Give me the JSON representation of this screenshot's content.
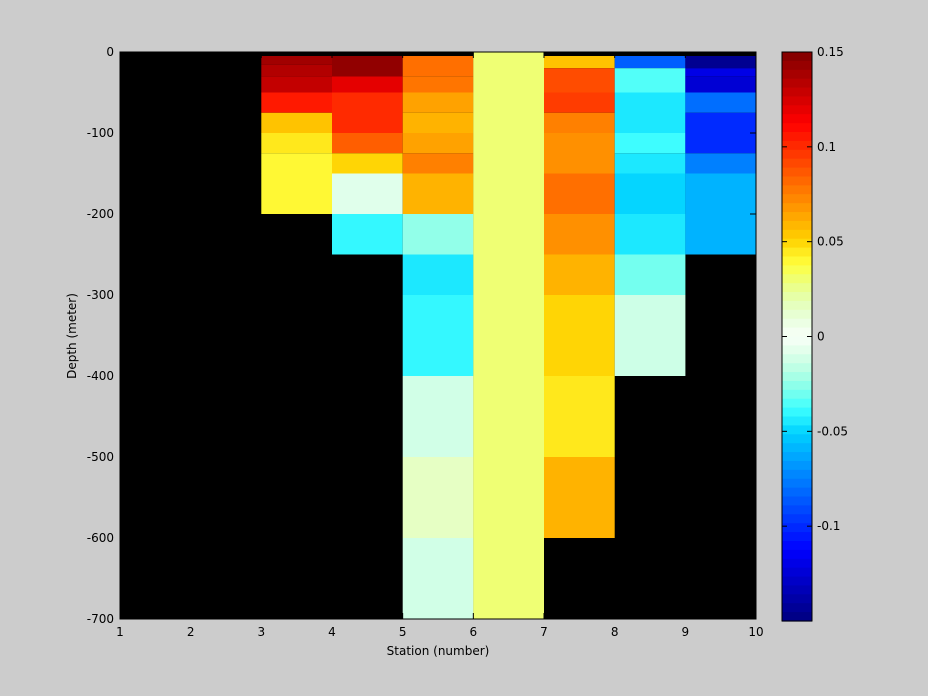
{
  "chart_data": {
    "type": "heatmap",
    "xlabel": "Station (number)",
    "ylabel": "Depth (meter)",
    "xlim": [
      1,
      10
    ],
    "ylim": [
      -700,
      0
    ],
    "x_ticks": [
      1,
      2,
      3,
      4,
      5,
      6,
      7,
      8,
      9,
      10
    ],
    "y_ticks": [
      0,
      -100,
      -200,
      -300,
      -400,
      -500,
      -600,
      -700
    ],
    "colorbar": {
      "colormap": "jet",
      "clim": [
        -0.15,
        0.15
      ],
      "ticks": [
        0.15,
        0.1,
        0.05,
        0,
        -0.05,
        -0.1
      ]
    },
    "background_color": "#000000",
    "columns": [
      {
        "x_start": 3,
        "x_end": 4,
        "cells": [
          {
            "top": -5,
            "bottom": -15,
            "value": 0.14
          },
          {
            "top": -15,
            "bottom": -30,
            "value": 0.135
          },
          {
            "top": -30,
            "bottom": -50,
            "value": 0.13
          },
          {
            "top": -50,
            "bottom": -75,
            "value": 0.105
          },
          {
            "top": -75,
            "bottom": -100,
            "value": 0.055
          },
          {
            "top": -100,
            "bottom": -125,
            "value": 0.045
          },
          {
            "top": -125,
            "bottom": -150,
            "value": 0.04
          },
          {
            "top": -150,
            "bottom": -200,
            "value": 0.04
          }
        ]
      },
      {
        "x_start": 4,
        "x_end": 5,
        "cells": [
          {
            "top": -5,
            "bottom": -30,
            "value": 0.145
          },
          {
            "top": -30,
            "bottom": -50,
            "value": 0.12
          },
          {
            "top": -50,
            "bottom": -100,
            "value": 0.1
          },
          {
            "top": -100,
            "bottom": -125,
            "value": 0.085
          },
          {
            "top": -125,
            "bottom": -150,
            "value": 0.05
          },
          {
            "top": -150,
            "bottom": -200,
            "value": -0.008
          },
          {
            "top": -200,
            "bottom": -250,
            "value": -0.04
          }
        ]
      },
      {
        "x_start": 5,
        "x_end": 6,
        "cells": [
          {
            "top": -5,
            "bottom": -30,
            "value": 0.08
          },
          {
            "top": -30,
            "bottom": -50,
            "value": 0.078
          },
          {
            "top": -50,
            "bottom": -75,
            "value": 0.065
          },
          {
            "top": -75,
            "bottom": -100,
            "value": 0.06
          },
          {
            "top": -100,
            "bottom": -125,
            "value": 0.065
          },
          {
            "top": -125,
            "bottom": -150,
            "value": 0.075
          },
          {
            "top": -150,
            "bottom": -200,
            "value": 0.06
          },
          {
            "top": -200,
            "bottom": -250,
            "value": -0.025
          },
          {
            "top": -250,
            "bottom": -300,
            "value": -0.045
          },
          {
            "top": -300,
            "bottom": -400,
            "value": -0.04
          },
          {
            "top": -400,
            "bottom": -500,
            "value": -0.012
          },
          {
            "top": -500,
            "bottom": -600,
            "value": 0.015
          },
          {
            "top": -600,
            "bottom": -700,
            "value": -0.012
          }
        ]
      },
      {
        "x_start": 6,
        "x_end": 7,
        "cells": [
          {
            "top": 0,
            "bottom": -700,
            "value": 0.03
          }
        ]
      },
      {
        "x_start": 7,
        "x_end": 8,
        "cells": [
          {
            "top": -5,
            "bottom": -20,
            "value": 0.055
          },
          {
            "top": -20,
            "bottom": -50,
            "value": 0.09
          },
          {
            "top": -50,
            "bottom": -75,
            "value": 0.095
          },
          {
            "top": -75,
            "bottom": -100,
            "value": 0.075
          },
          {
            "top": -100,
            "bottom": -150,
            "value": 0.07
          },
          {
            "top": -150,
            "bottom": -200,
            "value": 0.08
          },
          {
            "top": -200,
            "bottom": -250,
            "value": 0.07
          },
          {
            "top": -250,
            "bottom": -300,
            "value": 0.06
          },
          {
            "top": -300,
            "bottom": -400,
            "value": 0.05
          },
          {
            "top": -400,
            "bottom": -500,
            "value": 0.045
          },
          {
            "top": -500,
            "bottom": -600,
            "value": 0.06
          }
        ]
      },
      {
        "x_start": 8,
        "x_end": 9,
        "cells": [
          {
            "top": -5,
            "bottom": -20,
            "value": -0.085
          },
          {
            "top": -20,
            "bottom": -50,
            "value": -0.035
          },
          {
            "top": -50,
            "bottom": -100,
            "value": -0.045
          },
          {
            "top": -100,
            "bottom": -125,
            "value": -0.038
          },
          {
            "top": -125,
            "bottom": -150,
            "value": -0.045
          },
          {
            "top": -150,
            "bottom": -200,
            "value": -0.05
          },
          {
            "top": -200,
            "bottom": -250,
            "value": -0.045
          },
          {
            "top": -250,
            "bottom": -300,
            "value": -0.03
          },
          {
            "top": -300,
            "bottom": -400,
            "value": -0.013
          }
        ]
      },
      {
        "x_start": 9,
        "x_end": 10,
        "cells": [
          {
            "top": -5,
            "bottom": -20,
            "value": -0.145
          },
          {
            "top": -20,
            "bottom": -30,
            "value": -0.12
          },
          {
            "top": -30,
            "bottom": -50,
            "value": -0.125
          },
          {
            "top": -50,
            "bottom": -75,
            "value": -0.08
          },
          {
            "top": -75,
            "bottom": -125,
            "value": -0.1
          },
          {
            "top": -125,
            "bottom": -150,
            "value": -0.075
          },
          {
            "top": -150,
            "bottom": -250,
            "value": -0.06
          }
        ]
      }
    ]
  }
}
